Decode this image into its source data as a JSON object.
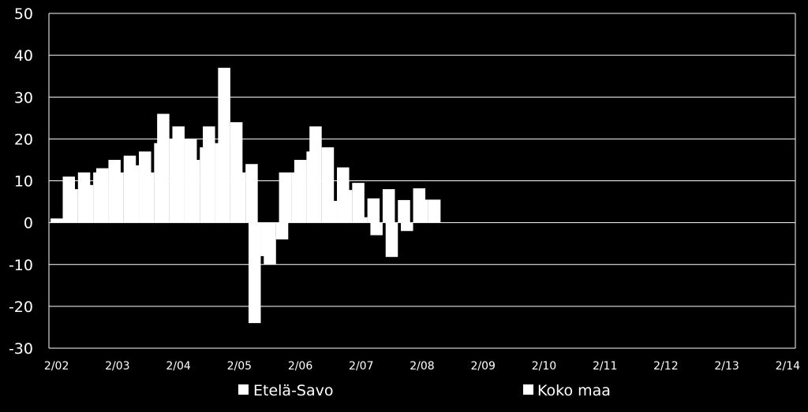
{
  "chart_data": {
    "type": "bar",
    "title": "",
    "xlabel": "",
    "ylabel": "",
    "ylim": [
      -30,
      50
    ],
    "yticks": [
      "50",
      "40",
      "30",
      "20",
      "10",
      "0",
      "-10",
      "-20",
      "-30"
    ],
    "grid": true,
    "legend_placement": "bottom",
    "colors": {
      "background": "#000000",
      "bars": "#ffffff",
      "grid": "#ffffff"
    },
    "categories": [
      "2/02",
      "3/02",
      "4/02",
      "1/03",
      "2/03",
      "3/03",
      "4/03",
      "1/04",
      "2/04",
      "3/04",
      "4/04",
      "1/05",
      "2/05",
      "3/05",
      "4/05",
      "1/06",
      "2/06",
      "3/06",
      "4/06",
      "1/07",
      "2/07",
      "3/07",
      "4/07",
      "1/08",
      "2/08",
      "3/08",
      "4/08",
      "1/09",
      "2/09",
      "3/09",
      "4/09",
      "1/10",
      "2/10",
      "3/10",
      "4/10",
      "1/11",
      "2/11",
      "3/11",
      "4/11",
      "1/12",
      "2/12",
      "3/12",
      "4/12",
      "1/13",
      "2/13",
      "3/13",
      "4/13",
      "1/14",
      "2/14"
    ],
    "tick_labels": [
      "2/02",
      "2/03",
      "2/04",
      "2/05",
      "2/06",
      "2/07",
      "2/08",
      "2/09",
      "2/10",
      "2/11",
      "2/12",
      "2/13",
      "2/14"
    ],
    "tick_label_indices": [
      0,
      4,
      8,
      12,
      16,
      20,
      24,
      28,
      32,
      36,
      40,
      44,
      48
    ],
    "series": [
      {
        "name": "Etelä-Savo",
        "values": [
          1,
          8,
          9,
          13,
          12,
          13.7,
          12,
          26,
          23,
          15,
          23,
          37,
          12,
          -24,
          -10,
          12,
          15,
          23,
          5.2,
          7.8,
          1.3,
          -3,
          -8.2,
          -2,
          5.5,
          null,
          null,
          null,
          null,
          null,
          null,
          null,
          null,
          null,
          null,
          null,
          null,
          null,
          null,
          null,
          null,
          null,
          null,
          null,
          null,
          null,
          null,
          null,
          null
        ]
      },
      {
        "name": "Koko maa",
        "values": [
          11,
          12,
          12,
          15,
          16,
          17,
          19,
          20,
          20,
          18,
          19,
          24,
          14,
          -8,
          -4,
          12,
          17,
          18,
          13.2,
          9.5,
          5.8,
          8,
          5.4,
          8.2,
          5.5,
          null,
          null,
          null,
          null,
          null,
          null,
          null,
          null,
          null,
          null,
          null,
          null,
          null,
          null,
          null,
          null,
          null,
          null,
          null,
          null,
          null,
          null,
          null,
          null
        ]
      }
    ]
  }
}
